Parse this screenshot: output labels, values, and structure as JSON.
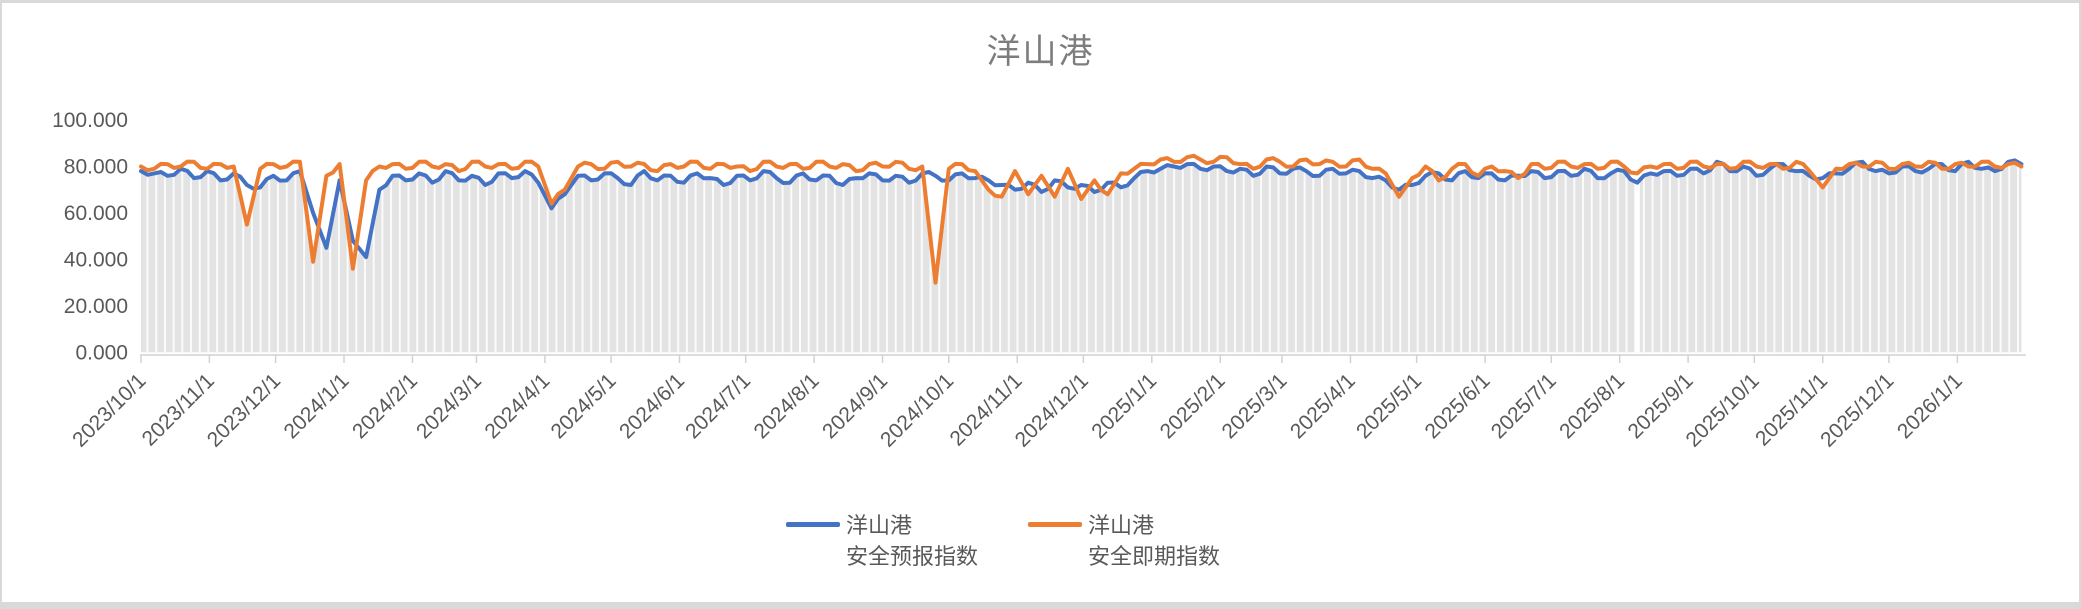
{
  "title": "洋山港",
  "legend": {
    "items": [
      {
        "line1": "洋山港",
        "line2": "安全预报指数"
      },
      {
        "line1": "洋山港",
        "line2": "安全即期指数"
      }
    ]
  },
  "colors": {
    "forecast_blue": "#4472C4",
    "spot_orange": "#ED7D31",
    "area_fill": "#e3e3e4",
    "stripe_white": "#fbfbfb",
    "axis_gray": "#d2d2d2",
    "label_gray": "#595959",
    "title_gray": "#7d7d7d",
    "frame_gray": "#d9d9d9"
  },
  "chart_data": {
    "type": "line",
    "title": "洋山港",
    "xlabel": "",
    "ylabel": "",
    "ylim": [
      0,
      100
    ],
    "y_ticks": [
      "0.000",
      "20.000",
      "40.000",
      "60.000",
      "80.000",
      "100.000"
    ],
    "y_tick_values": [
      0,
      20,
      40,
      60,
      80,
      100
    ],
    "grid": "none",
    "legend_position": "bottom-center",
    "x_start_date": "2023/10/1",
    "x_interval_days": 6,
    "x_end_date": "2026/1/31",
    "gap_date": "2025/8/9",
    "x_labels": [
      "2023/10/1",
      "2023/11/1",
      "2023/12/1",
      "2024/1/1",
      "2024/2/1",
      "2024/3/1",
      "2024/4/1",
      "2024/5/1",
      "2024/6/1",
      "2024/7/1",
      "2024/8/1",
      "2024/9/1",
      "2024/10/1",
      "2024/11/1",
      "2024/12/1",
      "2025/1/1",
      "2025/2/1",
      "2025/3/1",
      "2025/4/1",
      "2025/5/1",
      "2025/6/1",
      "2025/7/1",
      "2025/8/1",
      "2025/9/1",
      "2025/10/1",
      "2025/11/1",
      "2025/12/1",
      "2026/1/1"
    ],
    "series": [
      {
        "name": "洋山港 安全预报指数",
        "color": "#4472C4",
        "values": [
          78,
          77,
          76,
          79,
          75,
          78,
          74,
          77,
          72,
          71,
          76,
          74,
          78,
          60,
          45,
          74,
          48,
          41,
          70,
          76,
          74,
          77,
          73,
          78,
          74,
          76,
          72,
          77,
          75,
          78,
          73,
          62,
          68,
          76,
          74,
          77,
          75,
          72,
          78,
          74,
          76,
          73,
          77,
          75,
          72,
          76,
          74,
          78,
          75,
          73,
          77,
          74,
          76,
          72,
          75,
          77,
          74,
          76,
          73,
          77,
          76,
          74,
          77,
          75,
          74,
          72,
          70,
          73,
          69,
          74,
          71,
          72,
          69,
          73,
          71,
          75,
          78,
          79,
          80,
          81,
          79,
          80,
          78,
          79,
          76,
          80,
          77,
          79,
          78,
          76,
          79,
          77,
          78,
          75,
          74,
          70,
          72,
          76,
          77,
          74,
          78,
          75,
          77,
          74,
          76,
          78,
          75,
          78,
          76,
          79,
          75,
          77,
          78,
          73,
          77,
          78,
          76,
          79,
          77,
          82,
          78,
          80,
          76,
          79,
          81,
          78,
          76,
          75,
          77,
          79,
          82,
          78,
          77,
          80,
          78,
          79,
          81,
          78,
          82,
          79,
          78,
          82,
          81
        ]
      },
      {
        "name": "洋山港 安全即期指数",
        "color": "#ED7D31",
        "values": [
          80,
          79,
          81,
          80,
          82,
          79,
          81,
          80,
          55,
          79,
          81,
          80,
          82,
          39,
          76,
          81,
          36,
          74,
          80,
          81,
          79,
          82,
          80,
          81,
          78,
          82,
          80,
          81,
          79,
          82,
          80,
          64,
          70,
          80,
          81,
          79,
          82,
          80,
          81,
          78,
          81,
          80,
          82,
          79,
          81,
          80,
          78,
          82,
          80,
          81,
          79,
          82,
          80,
          81,
          78,
          81,
          80,
          82,
          79,
          80,
          30,
          79,
          81,
          78,
          70,
          67,
          78,
          68,
          76,
          67,
          79,
          66,
          74,
          68,
          77,
          79,
          81,
          83,
          82,
          84,
          83,
          82,
          84,
          81,
          79,
          83,
          82,
          80,
          83,
          81,
          82,
          80,
          83,
          79,
          77,
          67,
          75,
          80,
          74,
          79,
          81,
          76,
          80,
          78,
          75,
          81,
          79,
          82,
          80,
          81,
          79,
          82,
          80,
          77,
          80,
          81,
          79,
          82,
          80,
          81,
          79,
          82,
          80,
          81,
          79,
          82,
          78,
          71,
          79,
          81,
          80,
          82,
          79,
          81,
          80,
          82,
          79,
          81,
          80,
          82,
          80,
          81,
          80
        ]
      }
    ]
  }
}
